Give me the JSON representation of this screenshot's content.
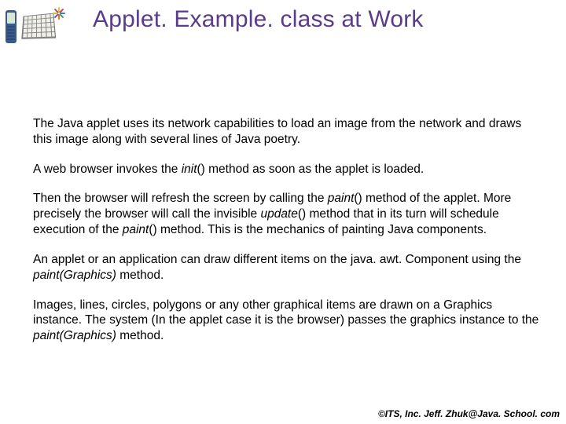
{
  "title": "Applet. Example. class at Work",
  "paragraphs": {
    "p1": "The Java applet uses its network capabilities to load an image from the network and draws this image along with several lines of Java poetry.",
    "p2_before": "A web browser invokes the ",
    "p2_italic": "init",
    "p2_after": "() method as soon as the applet is loaded.",
    "p3_a": "Then the browser will refresh the screen by calling the ",
    "p3_i1": "paint",
    "p3_b": "() method of the applet. More precisely the browser will call the invisible ",
    "p3_i2": "update",
    "p3_c": "() method that in its turn will schedule execution of the ",
    "p3_i3": "paint",
    "p3_d": "() method. This is the mechanics of painting Java components.",
    "p4_a": "An applet or an application can draw different items on the java. awt. Component using the ",
    "p4_i1": "paint(Graphics)",
    "p4_b": " method.",
    "p5_a": "Images, lines, circles, polygons or any other graphical items are drawn on a Graphics instance. The system (In the applet case it is the browser) passes the graphics instance to the ",
    "p5_i1": "paint(Graphics)",
    "p5_b": " method."
  },
  "footer": "©ITS, Inc. Jeff. Zhuk@Java. School. com",
  "styling": {
    "title_color": "#5a3b8c",
    "title_fontsize": 30,
    "body_fontsize": 15.5,
    "body_color": "#000000",
    "footer_fontsize": 12,
    "background_color": "#ffffff",
    "burst_colors": [
      "#e8c040",
      "#d04040",
      "#4080c0",
      "#40a050",
      "#e87030",
      "#8050a0",
      "#d0c030",
      "#c04080"
    ]
  }
}
